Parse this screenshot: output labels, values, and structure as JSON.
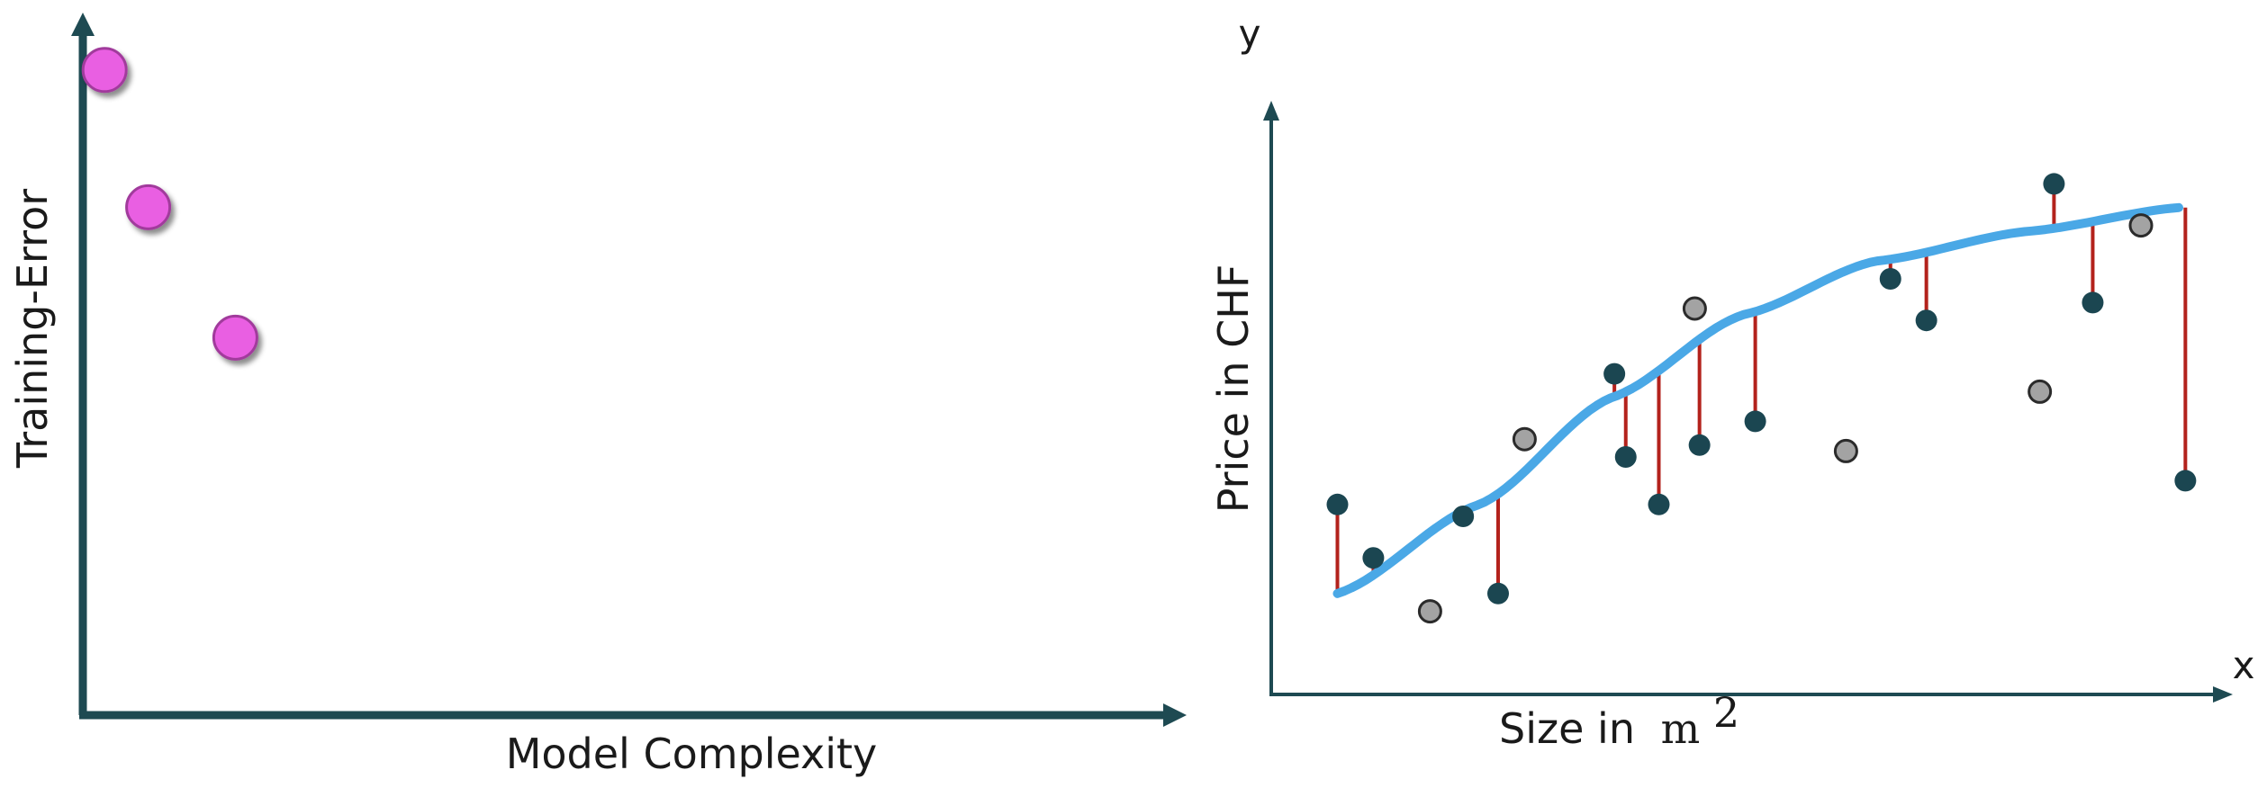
{
  "left_chart": {
    "x_label": "Model Complexity",
    "y_label": "Training-Error",
    "point_color": "#e95fe2",
    "point_stroke": "#a13b9c",
    "axis_color": "#1e4a52",
    "points": [
      {
        "x": 0.02,
        "y": 0.94
      },
      {
        "x": 0.06,
        "y": 0.74
      },
      {
        "x": 0.14,
        "y": 0.55
      }
    ]
  },
  "right_chart": {
    "x_label": "Size in",
    "x_unit": "m",
    "x_unit_exp": "2",
    "y_label": "Price in CHF",
    "x_letter": "x",
    "y_letter": "y",
    "axis_color": "#1e4a52",
    "curve_color": "#4aa8e6",
    "residual_color": "#b3221c",
    "train_color": "#1b4651",
    "test_color": "#a3a3a3",
    "fit_curve": [
      {
        "x": 0.07,
        "y": 0.17
      },
      {
        "x": 0.22,
        "y": 0.32
      },
      {
        "x": 0.36,
        "y": 0.5
      },
      {
        "x": 0.5,
        "y": 0.64
      },
      {
        "x": 0.64,
        "y": 0.73
      },
      {
        "x": 0.8,
        "y": 0.78
      },
      {
        "x": 0.96,
        "y": 0.82
      }
    ],
    "train_points": [
      {
        "x": 0.07,
        "y": 0.32
      },
      {
        "x": 0.108,
        "y": 0.23
      },
      {
        "x": 0.203,
        "y": 0.3
      },
      {
        "x": 0.24,
        "y": 0.17
      },
      {
        "x": 0.363,
        "y": 0.54
      },
      {
        "x": 0.375,
        "y": 0.4
      },
      {
        "x": 0.41,
        "y": 0.32
      },
      {
        "x": 0.453,
        "y": 0.42
      },
      {
        "x": 0.512,
        "y": 0.46
      },
      {
        "x": 0.655,
        "y": 0.7
      },
      {
        "x": 0.693,
        "y": 0.63
      },
      {
        "x": 0.828,
        "y": 0.86
      },
      {
        "x": 0.869,
        "y": 0.66
      },
      {
        "x": 0.967,
        "y": 0.36
      }
    ],
    "test_points": [
      {
        "x": 0.168,
        "y": 0.14
      },
      {
        "x": 0.268,
        "y": 0.43
      },
      {
        "x": 0.448,
        "y": 0.65
      },
      {
        "x": 0.608,
        "y": 0.41
      },
      {
        "x": 0.813,
        "y": 0.51
      },
      {
        "x": 0.92,
        "y": 0.79
      }
    ]
  }
}
